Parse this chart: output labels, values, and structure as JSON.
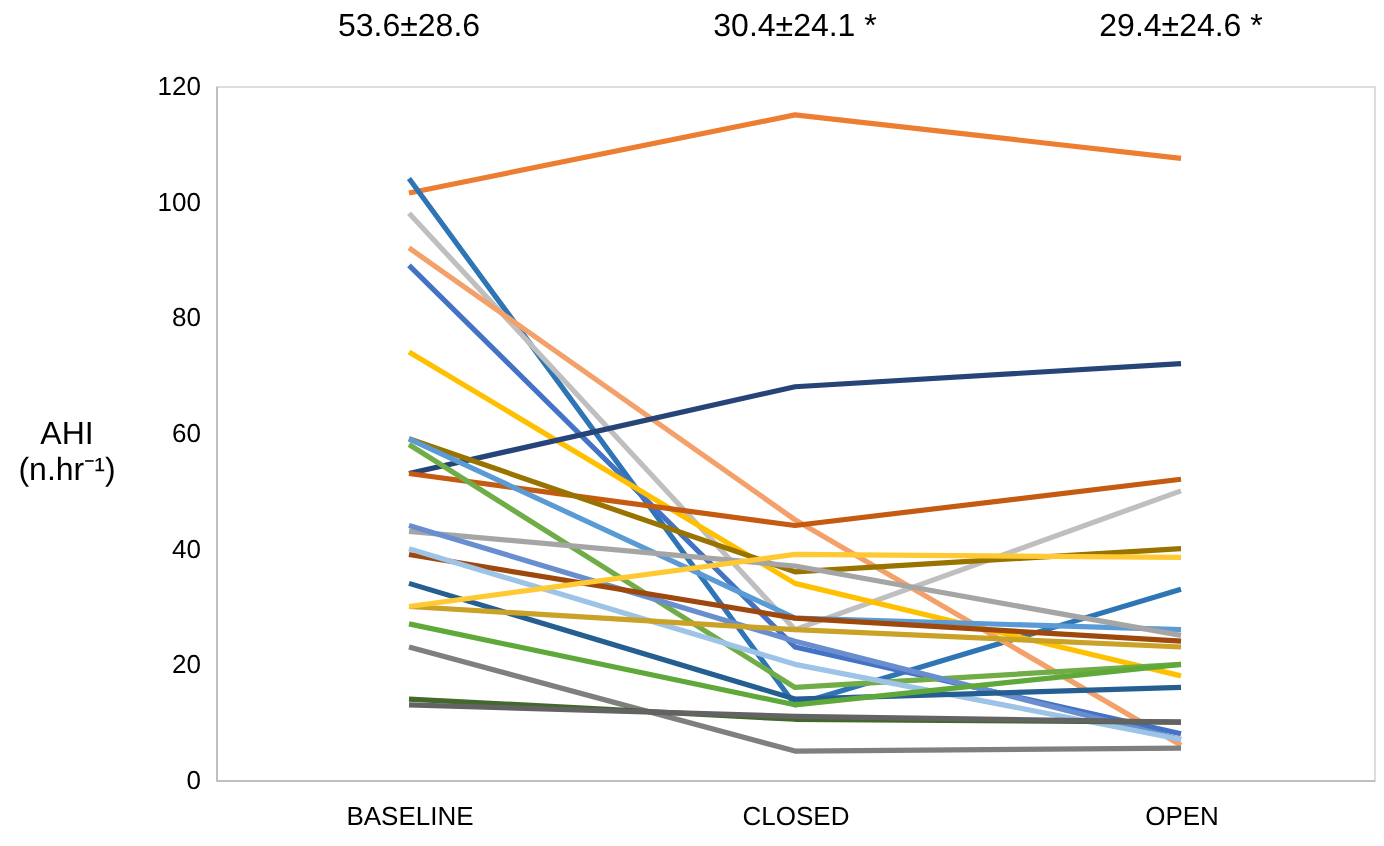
{
  "chart_data": {
    "type": "line",
    "ylabel": "AHI (n.hr⁻¹)",
    "categories": [
      "BASELINE",
      "CLOSED",
      "OPEN"
    ],
    "ylim": [
      0,
      120
    ],
    "yticks": [
      0,
      20,
      40,
      60,
      80,
      100,
      120
    ],
    "grid": false,
    "legend": false,
    "marker": "none",
    "line_style": "solid",
    "annotations": [
      "53.6±28.6",
      "30.4±24.1 *",
      "29.4±24.6 *"
    ],
    "series": [
      {
        "color": "#ed7d31",
        "values": [
          101.5,
          115,
          107.5
        ]
      },
      {
        "color": "#2e75b6",
        "values": [
          104,
          13,
          33
        ]
      },
      {
        "color": "#bfbfbf",
        "values": [
          98,
          26,
          50
        ]
      },
      {
        "color": "#f4a06a",
        "values": [
          92,
          45,
          6
        ]
      },
      {
        "color": "#4472c4",
        "values": [
          89,
          23,
          8
        ]
      },
      {
        "color": "#ffc000",
        "values": [
          74,
          34,
          18
        ]
      },
      {
        "color": "#264478",
        "values": [
          53,
          68,
          72
        ]
      },
      {
        "color": "#c55a11",
        "values": [
          53,
          44,
          52
        ]
      },
      {
        "color": "#997300",
        "values": [
          59,
          36,
          40
        ]
      },
      {
        "color": "#70ad47",
        "values": [
          58,
          16,
          20
        ]
      },
      {
        "color": "#5b9bd5",
        "values": [
          59,
          28,
          26
        ]
      },
      {
        "color": "#a5a5a5",
        "values": [
          43,
          37,
          25
        ]
      },
      {
        "color": "#698ed0",
        "values": [
          44,
          24,
          7
        ]
      },
      {
        "color": "#9e480e",
        "values": [
          39,
          28,
          24
        ]
      },
      {
        "color": "#9dc3e6",
        "values": [
          40,
          20,
          7
        ]
      },
      {
        "color": "#255e91",
        "values": [
          34,
          14,
          16
        ]
      },
      {
        "color": "#c9a227",
        "values": [
          30,
          26,
          23
        ]
      },
      {
        "color": "#ffc934",
        "values": [
          30,
          39,
          38.5
        ]
      },
      {
        "color": "#5fa83a",
        "values": [
          27,
          13,
          20
        ]
      },
      {
        "color": "#7f7f7f",
        "values": [
          23,
          5,
          5.5
        ]
      },
      {
        "color": "#43682b",
        "values": [
          14,
          10.5,
          10
        ]
      },
      {
        "color": "#636363",
        "values": [
          13,
          11,
          10
        ]
      }
    ]
  }
}
